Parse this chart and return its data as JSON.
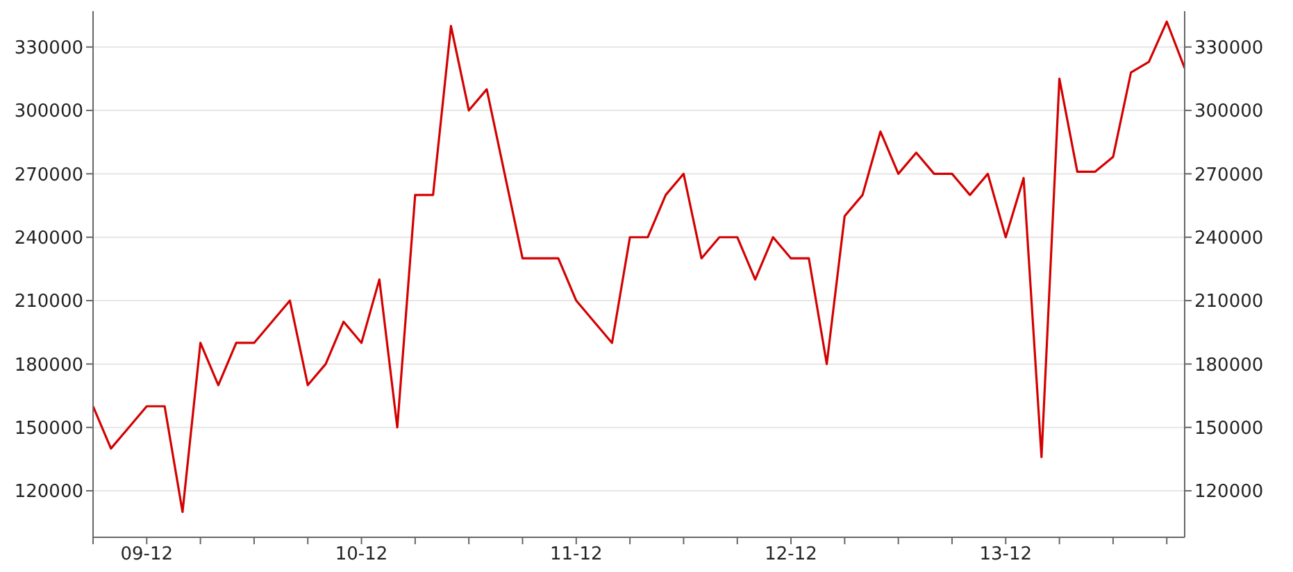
{
  "chart_data": {
    "type": "line",
    "categories": [
      null,
      null,
      null,
      "09-12",
      null,
      null,
      null,
      null,
      null,
      null,
      null,
      null,
      null,
      null,
      null,
      "10-12",
      null,
      null,
      null,
      null,
      null,
      null,
      null,
      null,
      null,
      null,
      null,
      "11-12",
      null,
      null,
      null,
      null,
      null,
      null,
      null,
      null,
      null,
      null,
      null,
      "12-12",
      null,
      null,
      null,
      null,
      null,
      null,
      null,
      null,
      null,
      null,
      null,
      "13-12",
      null,
      null,
      null,
      null,
      null,
      null,
      null,
      null,
      null,
      null
    ],
    "series": [
      {
        "color": "#d40000",
        "values": [
          160000,
          140000,
          150000,
          160000,
          160000,
          110000,
          190000,
          170000,
          190000,
          190000,
          200000,
          210000,
          170000,
          180000,
          200000,
          190000,
          220000,
          150000,
          260000,
          260000,
          340000,
          300000,
          310000,
          270000,
          230000,
          230000,
          230000,
          210000,
          200000,
          190000,
          240000,
          240000,
          260000,
          270000,
          230000,
          240000,
          240000,
          220000,
          240000,
          230000,
          230000,
          180000,
          250000,
          260000,
          290000,
          270000,
          280000,
          270000,
          270000,
          260000,
          270000,
          240000,
          268000,
          136000,
          315000,
          271000,
          271000,
          278000,
          318000,
          323000,
          342000,
          320000
        ]
      }
    ],
    "ylim": [
      98000,
      347000
    ],
    "yticks": [
      120000,
      150000,
      180000,
      210000,
      240000,
      270000,
      300000,
      330000
    ],
    "y2lim": [
      98000,
      347000
    ],
    "y2ticks": [
      120000,
      150000,
      180000,
      210000,
      240000,
      270000,
      300000,
      330000
    ],
    "grid": "y"
  }
}
